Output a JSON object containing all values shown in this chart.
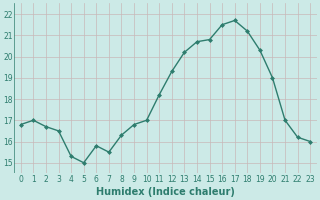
{
  "x": [
    0,
    1,
    2,
    3,
    4,
    5,
    6,
    7,
    8,
    9,
    10,
    11,
    12,
    13,
    14,
    15,
    16,
    17,
    18,
    19,
    20,
    21,
    22,
    23
  ],
  "y": [
    16.8,
    17.0,
    16.7,
    16.5,
    15.3,
    15.0,
    15.8,
    15.5,
    16.3,
    16.8,
    17.0,
    18.2,
    19.3,
    20.2,
    20.7,
    20.8,
    21.5,
    21.7,
    21.2,
    20.3,
    19.0,
    17.0,
    16.2,
    16.0
  ],
  "line_color": "#2e7d6e",
  "marker": "D",
  "markersize": 2.0,
  "linewidth": 1.0,
  "bg_color": "#cceae7",
  "grid_color": "#c8b8b8",
  "xlabel": "Humidex (Indice chaleur)",
  "xlabel_fontsize": 7,
  "xlabel_color": "#2e7d6e",
  "ylabel_ticks": [
    15,
    16,
    17,
    18,
    19,
    20,
    21,
    22
  ],
  "xtick_labels": [
    "0",
    "1",
    "2",
    "3",
    "4",
    "5",
    "6",
    "7",
    "8",
    "9",
    "10",
    "11",
    "12",
    "13",
    "14",
    "15",
    "16",
    "17",
    "18",
    "19",
    "20",
    "21",
    "22",
    "23"
  ],
  "ylim": [
    14.5,
    22.5
  ],
  "xlim": [
    -0.5,
    23.5
  ],
  "tick_fontsize": 5.5
}
